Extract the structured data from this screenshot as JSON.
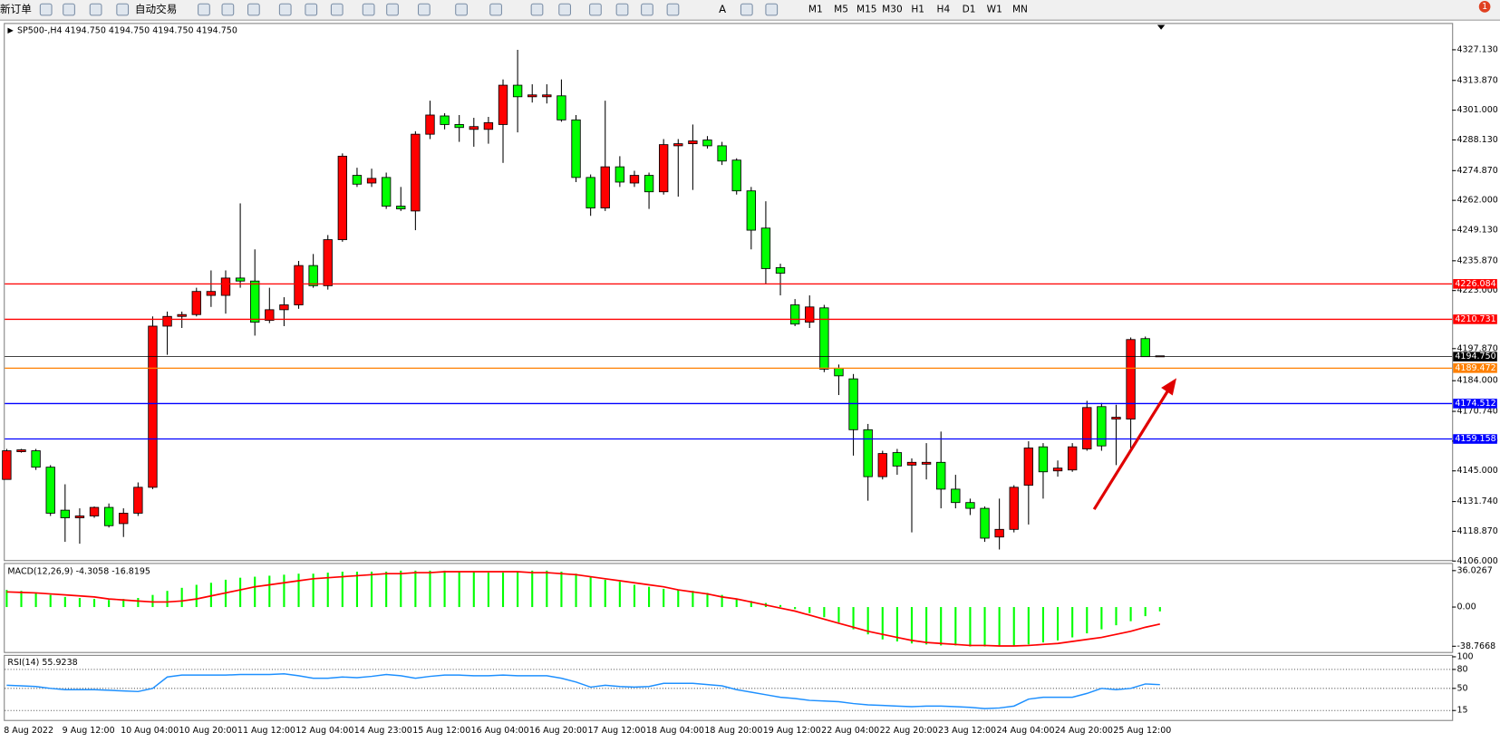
{
  "toolbar": {
    "new_order": "新订单",
    "auto_trading": "自动交易",
    "text_tool": "A",
    "timeframes": [
      "M1",
      "M5",
      "M15",
      "M30",
      "H1",
      "H4",
      "D1",
      "W1",
      "MN"
    ],
    "notification_count": "1"
  },
  "chart_data": [
    {
      "type": "candlestick",
      "title": "SP500-,H4  4194.750 4194.750 4194.750 4194.750",
      "up_color": "#ff0000",
      "down_color": "#00ff00",
      "categories": [
        "8 Aug 2022",
        null,
        null,
        null,
        "9 Aug 12:00",
        null,
        null,
        null,
        "10 Aug 04:00",
        null,
        null,
        null,
        "10 Aug 20:00",
        null,
        null,
        null,
        "11 Aug 12:00",
        null,
        null,
        null,
        "12 Aug 04:00",
        null,
        null,
        null,
        "14 Aug 23:00",
        null,
        null,
        null,
        "15 Aug 12:00",
        null,
        null,
        null,
        "16 Aug 04:00",
        null,
        null,
        null,
        "16 Aug 20:00",
        null,
        null,
        null,
        "17 Aug 12:00",
        null,
        null,
        null,
        "18 Aug 04:00",
        null,
        null,
        null,
        "18 Aug 20:00",
        null,
        null,
        null,
        "19 Aug 12:00",
        null,
        null,
        null,
        "22 Aug 04:00",
        null,
        null,
        null,
        "22 Aug 20:00",
        null,
        null,
        null,
        "23 Aug 12:00",
        null,
        null,
        null,
        "24 Aug 04:00",
        null,
        null,
        null,
        "24 Aug 20:00",
        null,
        null,
        null,
        "25 Aug 12:00",
        null,
        null,
        null
      ],
      "open": [
        4141.3,
        4153.3,
        4153.7,
        4146.6,
        4128.0,
        4124.7,
        4125.5,
        4129.2,
        4122.2,
        4126.7,
        4137.9,
        4207.6,
        4211.8,
        4212.6,
        4220.9,
        4220.9,
        4228.4,
        4227.1,
        4210.1,
        4214.7,
        4216.8,
        4233.8,
        4225.1,
        4245.0,
        4272.8,
        4269.5,
        4271.9,
        4259.5,
        4257.4,
        4290.6,
        4298.5,
        4294.8,
        4292.7,
        4292.7,
        4294.8,
        4311.8,
        4306.8,
        4306.8,
        4307.2,
        4296.8,
        4271.9,
        4258.7,
        4276.5,
        4269.5,
        4272.8,
        4265.7,
        4285.6,
        4286.5,
        4288.1,
        4285.6,
        4279.4,
        4266.1,
        4250.0,
        4232.9,
        4216.8,
        4209.3,
        4215.5,
        4189.4,
        4184.8,
        4162.8,
        4142.5,
        4152.9,
        4147.5,
        4147.9,
        4148.7,
        4137.1,
        4131.3,
        4128.8,
        4116.4,
        4119.7,
        4138.8,
        4155.4,
        4145.0,
        4145.4,
        4154.5,
        4172.8,
        4167.4,
        4167.4,
        4202.2,
        4194.75
      ],
      "high": [
        4154.5,
        4154.5,
        4154.5,
        4147.5,
        4139.2,
        4128.8,
        4129.6,
        4130.9,
        4128.8,
        4140.0,
        4211.8,
        4213.9,
        4213.9,
        4224.2,
        4231.7,
        4231.7,
        4260.7,
        4240.8,
        4224.2,
        4220.1,
        4235.8,
        4238.8,
        4247.0,
        4282.3,
        4276.1,
        4275.7,
        4274.0,
        4267.8,
        4291.9,
        4305.1,
        4299.7,
        4298.9,
        4297.7,
        4298.1,
        4314.3,
        4327.1,
        4312.2,
        4312.2,
        4314.3,
        4298.9,
        4273.2,
        4305.1,
        4281.1,
        4274.8,
        4274.0,
        4288.5,
        4288.5,
        4294.8,
        4289.8,
        4287.3,
        4280.2,
        4267.8,
        4261.6,
        4234.6,
        4219.3,
        4220.9,
        4216.8,
        4191.0,
        4186.9,
        4165.3,
        4153.7,
        4154.5,
        4150.4,
        4157.0,
        4162.0,
        4143.3,
        4133.0,
        4129.6,
        4133.0,
        4138.8,
        4157.8,
        4157.0,
        4149.5,
        4157.0,
        4175.3,
        4174.4,
        4173.6,
        4202.7,
        4203.1,
        4194.75
      ],
      "low": [
        4141.3,
        4152.9,
        4145.4,
        4125.5,
        4114.3,
        4113.5,
        4124.7,
        4120.5,
        4116.4,
        4125.5,
        4137.1,
        4195.2,
        4206.8,
        4211.8,
        4215.9,
        4213.0,
        4224.2,
        4203.5,
        4208.9,
        4207.6,
        4215.1,
        4224.2,
        4223.4,
        4244.1,
        4267.8,
        4267.8,
        4258.3,
        4257.4,
        4249.1,
        4288.5,
        4292.7,
        4287.3,
        4285.2,
        4286.5,
        4278.2,
        4291.4,
        4304.3,
        4303.9,
        4296.0,
        4269.9,
        4255.3,
        4257.4,
        4267.8,
        4267.8,
        4258.3,
        4264.5,
        4263.6,
        4266.5,
        4284.4,
        4277.3,
        4264.5,
        4240.8,
        4225.9,
        4220.9,
        4207.6,
        4206.8,
        4187.7,
        4177.8,
        4151.6,
        4132.1,
        4141.3,
        4143.3,
        4118.4,
        4141.3,
        4128.8,
        4128.8,
        4125.9,
        4114.3,
        4111.0,
        4118.4,
        4121.8,
        4133.0,
        4142.5,
        4144.6,
        4153.7,
        4153.7,
        4147.5,
        4153.7,
        4194.4,
        4194.75
      ],
      "close": [
        4153.7,
        4154.1,
        4146.6,
        4126.7,
        4124.7,
        4125.5,
        4129.2,
        4121.3,
        4126.7,
        4137.9,
        4207.6,
        4211.8,
        4212.6,
        4222.6,
        4222.6,
        4228.4,
        4227.1,
        4209.3,
        4214.7,
        4216.8,
        4233.8,
        4225.1,
        4245.0,
        4281.1,
        4269.0,
        4271.5,
        4259.5,
        4258.3,
        4290.6,
        4298.9,
        4294.8,
        4293.5,
        4293.9,
        4295.6,
        4311.8,
        4306.8,
        4307.6,
        4307.6,
        4296.8,
        4271.9,
        4258.7,
        4276.5,
        4269.9,
        4272.8,
        4265.7,
        4286.1,
        4286.5,
        4287.7,
        4285.6,
        4279.0,
        4266.1,
        4249.1,
        4232.5,
        4230.5,
        4208.5,
        4215.9,
        4189.0,
        4186.1,
        4162.8,
        4142.5,
        4152.5,
        4147.1,
        4148.7,
        4148.7,
        4137.1,
        4131.3,
        4128.8,
        4115.9,
        4119.7,
        4137.9,
        4154.9,
        4144.6,
        4146.2,
        4155.4,
        4172.4,
        4155.8,
        4168.2,
        4201.8,
        4194.4,
        4194.75
      ],
      "ylim": [
        4106.0,
        4338.3
      ],
      "yticks": [
        {
          "value": 4327.13,
          "label": "4327.130"
        },
        {
          "value": 4313.87,
          "label": "4313.870"
        },
        {
          "value": 4301,
          "label": "4301.000"
        },
        {
          "value": 4288.13,
          "label": "4288.130"
        },
        {
          "value": 4274.87,
          "label": "4274.870"
        },
        {
          "value": 4262,
          "label": "4262.000"
        },
        {
          "value": 4249.13,
          "label": "4249.130"
        },
        {
          "value": 4235.87,
          "label": "4235.870"
        },
        {
          "value": 4223,
          "label": "4223.000"
        },
        {
          "value": 4197.87,
          "label": "4197.870"
        },
        {
          "value": 4184,
          "label": "4184.000"
        },
        {
          "value": 4170.74,
          "label": "4170.740"
        },
        {
          "value": 4157.87,
          "label": "4157.870"
        },
        {
          "value": 4145,
          "label": "4145.000"
        },
        {
          "value": 4131.74,
          "label": "4131.740"
        },
        {
          "value": 4118.87,
          "label": "4118.870"
        },
        {
          "value": 4106,
          "label": "4106.000"
        }
      ],
      "levels": [
        {
          "value": 4226.084,
          "label": "4226.084",
          "color": "#ff0000"
        },
        {
          "value": 4210.731,
          "label": "4210.731",
          "color": "#ff0000"
        },
        {
          "value": 4194.75,
          "label": "4194.750",
          "color": "#000000"
        },
        {
          "value": 4189.472,
          "label": "4189.472",
          "color": "#ff8000"
        },
        {
          "value": 4174.512,
          "label": "4174.512",
          "color": "#0000ff"
        },
        {
          "value": 4159.158,
          "label": "4159.158",
          "color": "#0000ff"
        }
      ]
    },
    {
      "type": "macd",
      "title": "MACD(12,26,9) -4.3058 -16.8195",
      "histogram": {
        "color": "#00ff00",
        "values": [
          17,
          16,
          14,
          12,
          10,
          9,
          8,
          7,
          8,
          9,
          12,
          16,
          19,
          22,
          24,
          27,
          29,
          30,
          31,
          32,
          33,
          33,
          34,
          35,
          35,
          35,
          35,
          36,
          36,
          36,
          36,
          35,
          35,
          34,
          34,
          35,
          36,
          36,
          35,
          33,
          30,
          27,
          25,
          22,
          20,
          18,
          17,
          16,
          14,
          12,
          8,
          6,
          4,
          2,
          -2,
          -6,
          -10,
          -15,
          -22,
          -27,
          -32,
          -34,
          -36,
          -37,
          -38,
          -38,
          -39,
          -39,
          -39,
          -38,
          -37,
          -35,
          -33,
          -30,
          -26,
          -22,
          -18,
          -14,
          -9,
          -4.3058
        ]
      },
      "signal": {
        "color": "#ff0000",
        "values": [
          15,
          14.5,
          14,
          13,
          12,
          11,
          10,
          8,
          7,
          6,
          5,
          5,
          6,
          8,
          11,
          14,
          17,
          20,
          22,
          24,
          26,
          28,
          29,
          30,
          31,
          32,
          33,
          33,
          34,
          34,
          35,
          35,
          35,
          35,
          35,
          35,
          34,
          34,
          33,
          32,
          30,
          28,
          26,
          24,
          22,
          20,
          17,
          15,
          13,
          10,
          8,
          5,
          2,
          -1,
          -4,
          -8,
          -12,
          -16,
          -20,
          -24,
          -27,
          -30,
          -33,
          -35,
          -36,
          -37,
          -38,
          -38,
          -38.5,
          -38.5,
          -38,
          -37,
          -36,
          -34,
          -32,
          -30,
          -27,
          -24,
          -20,
          -16.8195
        ]
      },
      "ylim": [
        -45.4,
        41.7
      ],
      "yticks": [
        36.0267,
        {
          "value": 0,
          "label": "0.00"
        },
        -38.7668
      ]
    },
    {
      "type": "line",
      "title": "RSI(14) 55.9238",
      "color": "#1e90ff",
      "values": [
        55,
        54,
        53,
        50,
        48,
        48,
        48,
        47,
        46,
        45,
        50,
        68,
        71,
        71,
        71,
        71,
        72,
        72,
        72,
        73,
        70,
        66,
        66,
        68,
        67,
        69,
        72,
        70,
        66,
        69,
        71,
        71,
        70,
        70,
        71,
        70,
        70,
        70,
        66,
        60,
        52,
        55,
        53,
        52,
        53,
        58,
        58,
        58,
        56,
        54,
        48,
        44,
        40,
        36,
        34,
        31,
        30,
        29,
        26,
        24,
        23,
        22,
        21,
        22,
        22,
        21,
        20,
        18,
        19,
        22,
        33,
        36,
        36,
        36,
        42,
        50,
        48,
        50,
        57,
        55.9238
      ],
      "ylim": [
        0,
        100
      ],
      "yticks": [
        100,
        80,
        50,
        15
      ]
    }
  ]
}
